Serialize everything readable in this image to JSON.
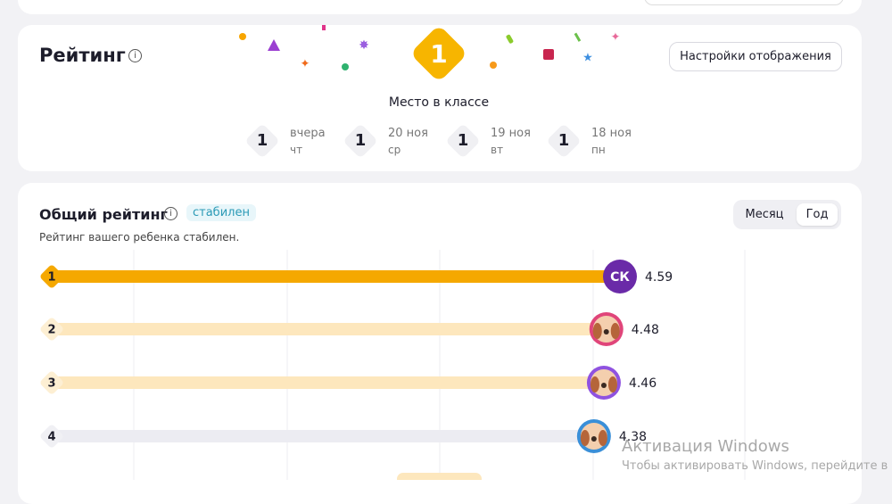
{
  "rating_card": {
    "title": "Рейтинг",
    "badge_rank": 1,
    "badge_label": "Место в классе",
    "settings_button": "Настройки отображения",
    "history": [
      {
        "rank": 1,
        "day": "вчера",
        "weekday": "чт"
      },
      {
        "rank": 1,
        "day": "20 ноя",
        "weekday": "ср"
      },
      {
        "rank": 1,
        "day": "19 ноя",
        "weekday": "вт"
      },
      {
        "rank": 1,
        "day": "18 ноя",
        "weekday": "пн"
      }
    ]
  },
  "overall": {
    "title": "Общий рейтинг",
    "status": "стабилен",
    "subtitle": "Рейтинг вашего ребенка стабилен.",
    "tabs": [
      "Месяц",
      "Год"
    ],
    "active_tab": 1,
    "rows": [
      {
        "rank": 1,
        "avatar": "СК",
        "value": 4.59
      },
      {
        "rank": 2,
        "value": 4.48
      },
      {
        "rank": 3,
        "value": 4.46
      },
      {
        "rank": 4,
        "value": 4.38
      }
    ]
  },
  "watermark": {
    "title": "Активация Windows",
    "text": "Чтобы активировать Windows, перейдите в раз"
  }
}
